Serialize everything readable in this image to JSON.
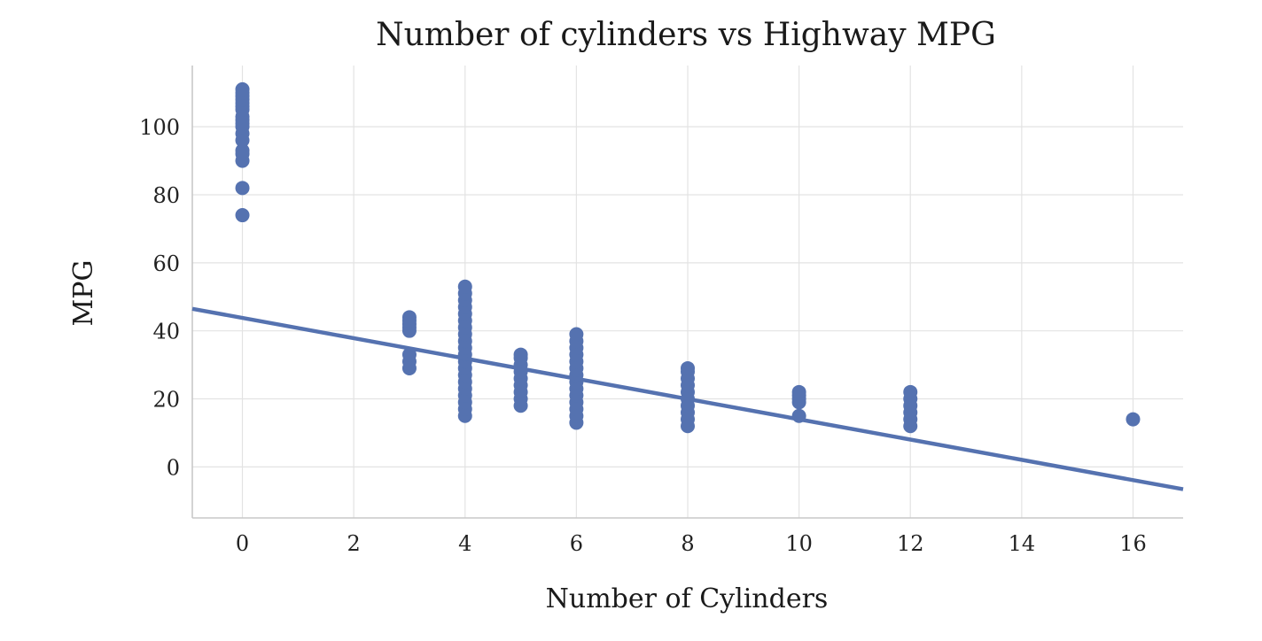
{
  "chart_data": {
    "type": "scatter",
    "title": "Number of cylinders vs Highway MPG",
    "xlabel": "Number of Cylinders",
    "ylabel": "MPG",
    "xlim": [
      -0.9,
      16.9
    ],
    "ylim": [
      -15,
      118
    ],
    "xticks": [
      0,
      2,
      4,
      6,
      8,
      10,
      12,
      14,
      16
    ],
    "yticks": [
      0,
      20,
      40,
      60,
      80,
      100
    ],
    "grid": true,
    "legend": "none",
    "point_color": "#5572b0",
    "line_color": "#5572b0",
    "regression_line": {
      "intercept": 43.8,
      "slope": -2.98
    },
    "points": [
      {
        "x": 0,
        "y": 74
      },
      {
        "x": 0,
        "y": 82
      },
      {
        "x": 0,
        "y": 90
      },
      {
        "x": 0,
        "y": 92
      },
      {
        "x": 0,
        "y": 93
      },
      {
        "x": 0,
        "y": 96
      },
      {
        "x": 0,
        "y": 98
      },
      {
        "x": 0,
        "y": 100
      },
      {
        "x": 0,
        "y": 101
      },
      {
        "x": 0,
        "y": 102
      },
      {
        "x": 0,
        "y": 103
      },
      {
        "x": 0,
        "y": 105
      },
      {
        "x": 0,
        "y": 106
      },
      {
        "x": 0,
        "y": 107
      },
      {
        "x": 0,
        "y": 108
      },
      {
        "x": 0,
        "y": 109
      },
      {
        "x": 0,
        "y": 110
      },
      {
        "x": 0,
        "y": 111
      },
      {
        "x": 3,
        "y": 29
      },
      {
        "x": 3,
        "y": 31
      },
      {
        "x": 3,
        "y": 33
      },
      {
        "x": 3,
        "y": 40
      },
      {
        "x": 3,
        "y": 41
      },
      {
        "x": 3,
        "y": 42
      },
      {
        "x": 3,
        "y": 43
      },
      {
        "x": 3,
        "y": 44
      },
      {
        "x": 4,
        "y": 15
      },
      {
        "x": 4,
        "y": 17
      },
      {
        "x": 4,
        "y": 19
      },
      {
        "x": 4,
        "y": 21
      },
      {
        "x": 4,
        "y": 23
      },
      {
        "x": 4,
        "y": 25
      },
      {
        "x": 4,
        "y": 27
      },
      {
        "x": 4,
        "y": 29
      },
      {
        "x": 4,
        "y": 31
      },
      {
        "x": 4,
        "y": 33
      },
      {
        "x": 4,
        "y": 35
      },
      {
        "x": 4,
        "y": 37
      },
      {
        "x": 4,
        "y": 39
      },
      {
        "x": 4,
        "y": 41
      },
      {
        "x": 4,
        "y": 43
      },
      {
        "x": 4,
        "y": 45
      },
      {
        "x": 4,
        "y": 47
      },
      {
        "x": 4,
        "y": 49
      },
      {
        "x": 4,
        "y": 51
      },
      {
        "x": 4,
        "y": 53
      },
      {
        "x": 5,
        "y": 18
      },
      {
        "x": 5,
        "y": 20
      },
      {
        "x": 5,
        "y": 22
      },
      {
        "x": 5,
        "y": 24
      },
      {
        "x": 5,
        "y": 26
      },
      {
        "x": 5,
        "y": 28
      },
      {
        "x": 5,
        "y": 30
      },
      {
        "x": 5,
        "y": 32
      },
      {
        "x": 5,
        "y": 33
      },
      {
        "x": 6,
        "y": 13
      },
      {
        "x": 6,
        "y": 15
      },
      {
        "x": 6,
        "y": 17
      },
      {
        "x": 6,
        "y": 19
      },
      {
        "x": 6,
        "y": 21
      },
      {
        "x": 6,
        "y": 23
      },
      {
        "x": 6,
        "y": 25
      },
      {
        "x": 6,
        "y": 27
      },
      {
        "x": 6,
        "y": 29
      },
      {
        "x": 6,
        "y": 31
      },
      {
        "x": 6,
        "y": 33
      },
      {
        "x": 6,
        "y": 35
      },
      {
        "x": 6,
        "y": 37
      },
      {
        "x": 6,
        "y": 39
      },
      {
        "x": 8,
        "y": 12
      },
      {
        "x": 8,
        "y": 14
      },
      {
        "x": 8,
        "y": 16
      },
      {
        "x": 8,
        "y": 18
      },
      {
        "x": 8,
        "y": 20
      },
      {
        "x": 8,
        "y": 22
      },
      {
        "x": 8,
        "y": 24
      },
      {
        "x": 8,
        "y": 26
      },
      {
        "x": 8,
        "y": 28
      },
      {
        "x": 8,
        "y": 29
      },
      {
        "x": 10,
        "y": 15
      },
      {
        "x": 10,
        "y": 19
      },
      {
        "x": 10,
        "y": 20
      },
      {
        "x": 10,
        "y": 21
      },
      {
        "x": 10,
        "y": 22
      },
      {
        "x": 12,
        "y": 12
      },
      {
        "x": 12,
        "y": 14
      },
      {
        "x": 12,
        "y": 16
      },
      {
        "x": 12,
        "y": 18
      },
      {
        "x": 12,
        "y": 20
      },
      {
        "x": 12,
        "y": 22
      },
      {
        "x": 16,
        "y": 14
      }
    ]
  }
}
